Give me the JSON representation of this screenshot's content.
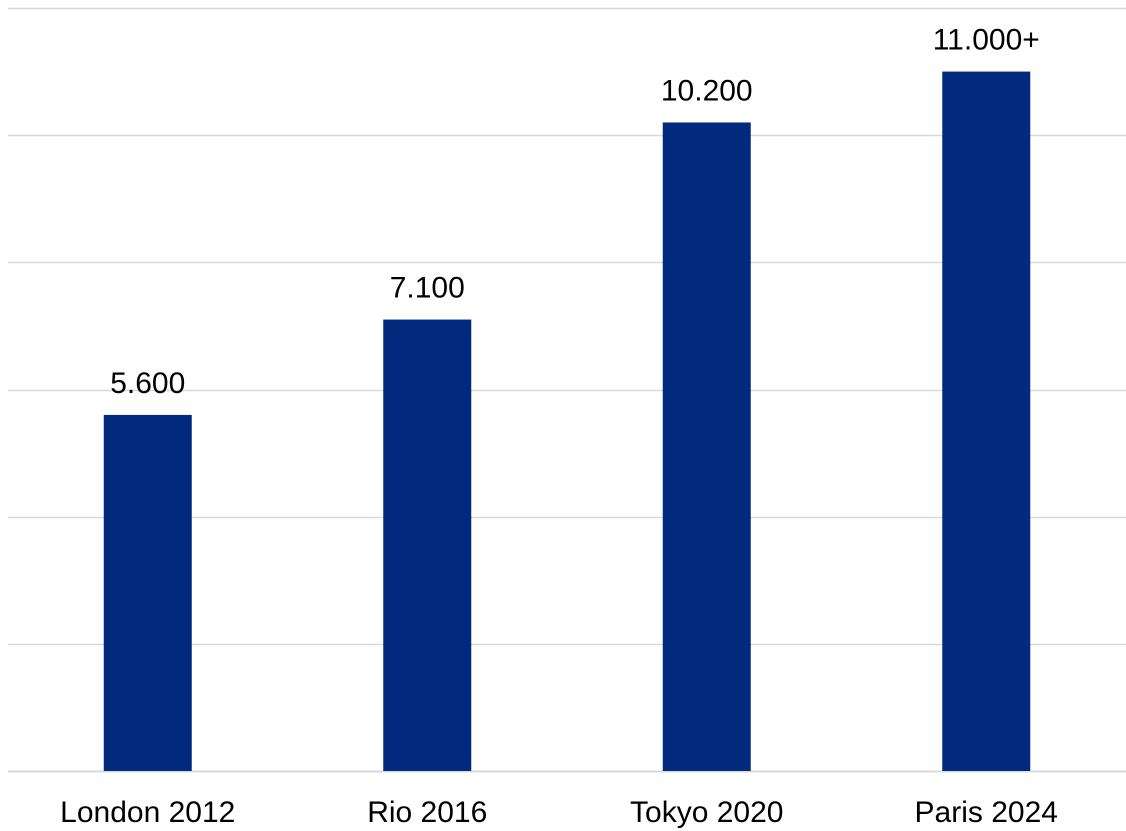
{
  "chart_data": {
    "type": "bar",
    "categories": [
      "London 2012",
      "Rio 2016",
      "Tokyo 2020",
      "Paris 2024"
    ],
    "values": [
      5600,
      7100,
      10200,
      11000
    ],
    "data_labels": [
      "5.600",
      "7.100",
      "10.200",
      "11.000+"
    ],
    "ylim": [
      0,
      12000
    ],
    "y_grid_step": 2000,
    "grid": true,
    "legend": "none",
    "colors": {
      "bar": "#012a7e",
      "grid": "#d9d9d9",
      "text": "#000000",
      "background": "#ffffff"
    }
  }
}
